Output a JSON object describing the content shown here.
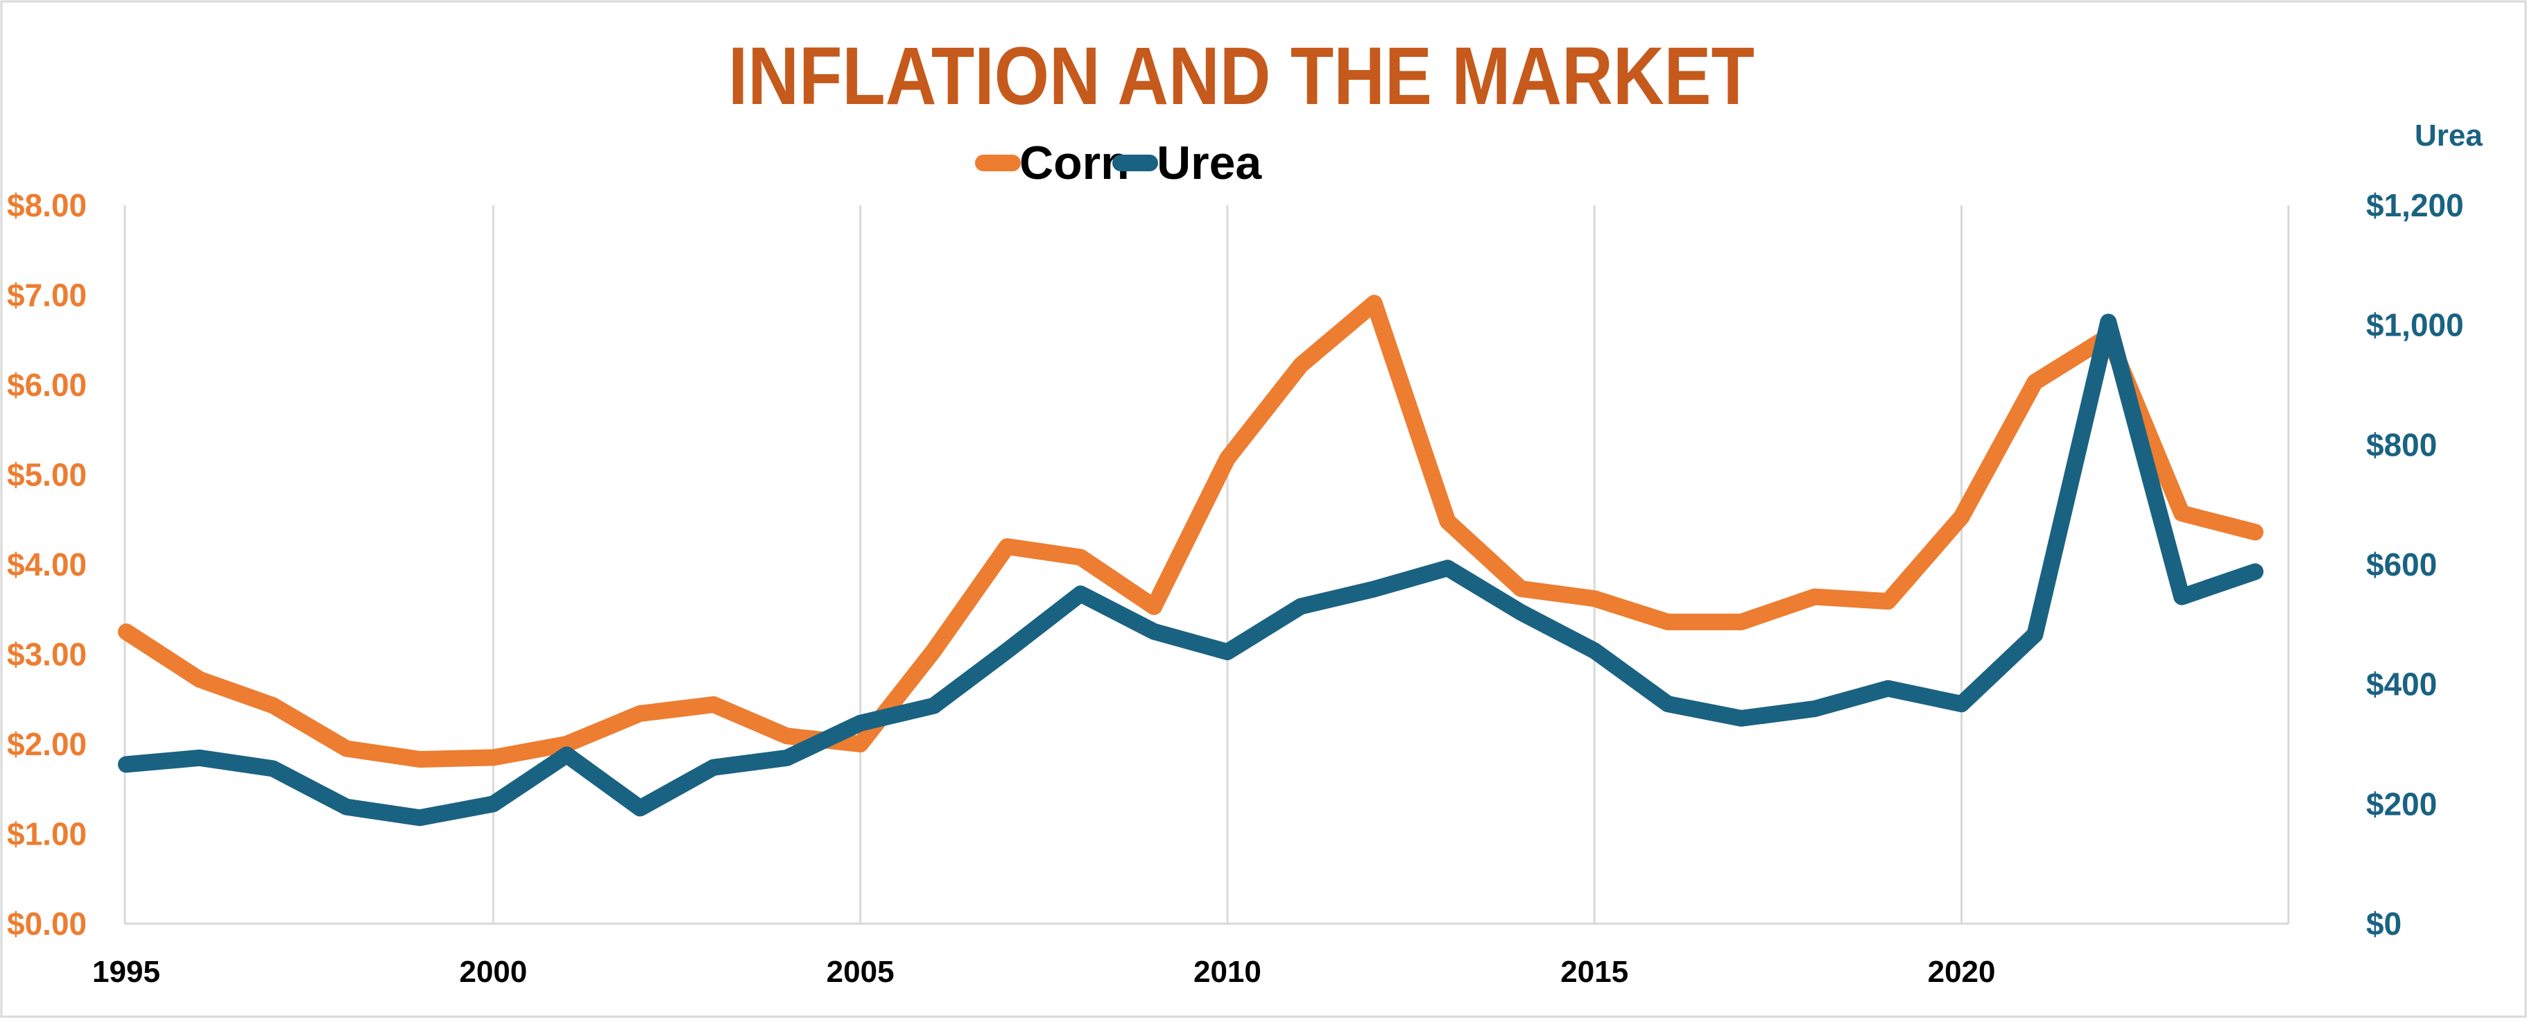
{
  "chart_data": {
    "type": "line",
    "title": "INFLATION AND THE MARKET",
    "x": [
      1995,
      1996,
      1997,
      1998,
      1999,
      2000,
      2001,
      2002,
      2003,
      2004,
      2005,
      2006,
      2007,
      2008,
      2009,
      2010,
      2011,
      2012,
      2013,
      2014,
      2015,
      2016,
      2017,
      2018,
      2019,
      2020,
      2021,
      2022,
      2023,
      2024
    ],
    "series": [
      {
        "name": "Corn",
        "axis": "left",
        "color": "#ED7D31",
        "values": [
          3.25,
          2.72,
          2.43,
          1.95,
          1.83,
          1.85,
          2.0,
          2.34,
          2.44,
          2.09,
          2.0,
          3.04,
          4.2,
          4.08,
          3.53,
          5.18,
          6.22,
          6.91,
          4.48,
          3.73,
          3.62,
          3.36,
          3.36,
          3.64,
          3.59,
          4.53,
          6.03,
          6.54,
          4.57,
          4.36
        ]
      },
      {
        "name": "Urea",
        "axis": "right",
        "color": "#1A6282",
        "values": [
          266,
          277,
          259,
          195,
          177,
          200,
          282,
          193,
          261,
          277,
          335,
          364,
          456,
          551,
          488,
          454,
          530,
          559,
          594,
          520,
          456,
          367,
          343,
          359,
          393,
          367,
          483,
          1005,
          546,
          588
        ]
      }
    ],
    "left_axis": {
      "ylim": [
        0,
        8
      ],
      "ticks": [
        "$0.00",
        "$1.00",
        "$2.00",
        "$3.00",
        "$4.00",
        "$5.00",
        "$6.00",
        "$7.00",
        "$8.00"
      ],
      "color": "#ED7D31"
    },
    "right_axis": {
      "label": "Urea",
      "ylim": [
        0,
        1200
      ],
      "ticks": [
        "$0",
        "$200",
        "$400",
        "$600",
        "$800",
        "$1,000",
        "$1,200"
      ],
      "color": "#1A6282"
    },
    "x_ticks": [
      "1995",
      "2000",
      "2005",
      "2010",
      "2015",
      "2020"
    ],
    "grid": "vertical",
    "legend": "top-center",
    "title_color": "#C55A1C"
  }
}
